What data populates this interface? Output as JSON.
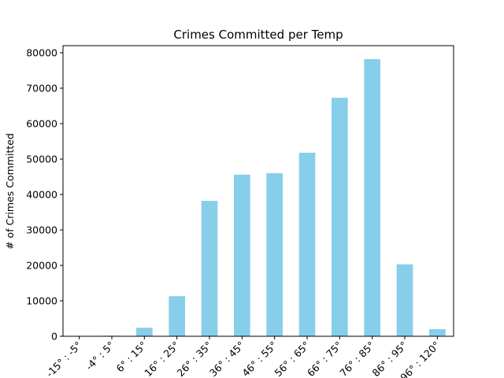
{
  "chart_data": {
    "type": "bar",
    "title": "Crimes Committed per Temp",
    "xlabel": "",
    "ylabel": "# of Crimes Committed",
    "categories": [
      "-15° : -5°",
      "-4° : 5°",
      "6° : 15°",
      "16° : 25°",
      "26° : 35°",
      "36° : 45°",
      "46° : 55°",
      "56° : 65°",
      "66° : 75°",
      "76° : 85°",
      "86° : 95°",
      "96° : 120°"
    ],
    "values": [
      0,
      150,
      2400,
      11300,
      38200,
      45600,
      46000,
      51800,
      67300,
      78200,
      20300,
      2000
    ],
    "ylim": [
      0,
      82000
    ],
    "yticks": [
      0,
      10000,
      20000,
      30000,
      40000,
      50000,
      60000,
      70000,
      80000
    ],
    "ytick_labels": [
      "0",
      "10000",
      "20000",
      "30000",
      "40000",
      "50000",
      "60000",
      "70000",
      "80000"
    ],
    "grid": false,
    "bar_color": "#87ceeb"
  }
}
